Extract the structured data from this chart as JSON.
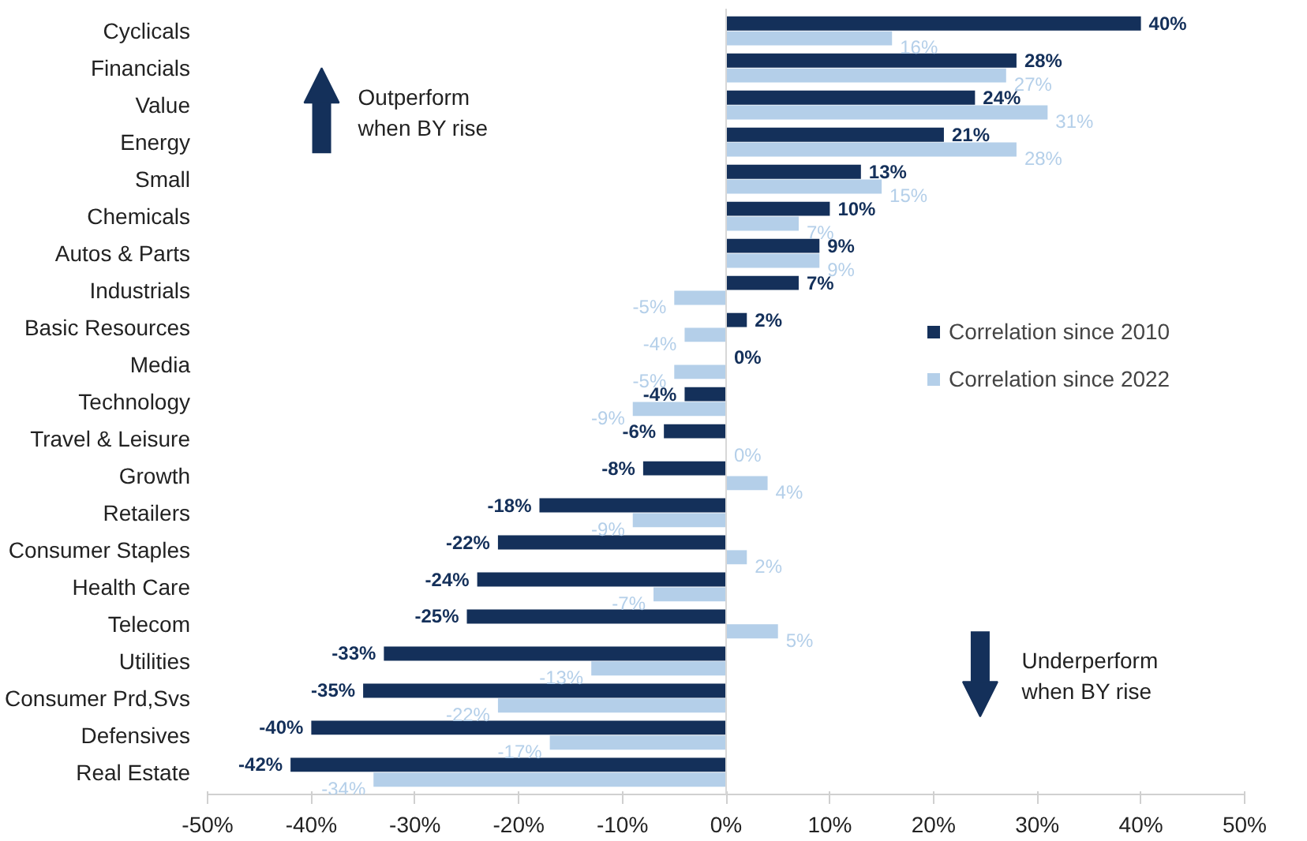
{
  "chart_data": {
    "type": "bar",
    "orientation": "horizontal",
    "categories": [
      "Cyclicals",
      "Financials",
      "Value",
      "Energy",
      "Small",
      "Chemicals",
      "Autos & Parts",
      "Industrials",
      "Basic Resources",
      "Media",
      "Technology",
      "Travel & Leisure",
      "Growth",
      "Retailers",
      "Consumer Staples",
      "Health Care",
      "Telecom",
      "Utilities",
      "Consumer Prd,Svs",
      "Defensives",
      "Real Estate"
    ],
    "series": [
      {
        "name": "Correlation since 2010",
        "color": "#14305a",
        "values": [
          40,
          28,
          24,
          21,
          13,
          10,
          9,
          7,
          2,
          0,
          -4,
          -6,
          -8,
          -18,
          -22,
          -24,
          -25,
          -33,
          -35,
          -40,
          -42
        ],
        "value_labels": [
          "40%",
          "28%",
          "24%",
          "21%",
          "13%",
          "10%",
          "9%",
          "7%",
          "2%",
          "0%",
          "-4%",
          "-6%",
          "-8%",
          "-18%",
          "-22%",
          "-24%",
          "-25%",
          "-33%",
          "-35%",
          "-40%",
          "-42%"
        ]
      },
      {
        "name": "Correlation since 2022",
        "color": "#b4cfe9",
        "values": [
          16,
          27,
          31,
          28,
          15,
          7,
          9,
          -5,
          -4,
          -5,
          -9,
          0,
          4,
          -9,
          2,
          -7,
          5,
          -13,
          -22,
          -17,
          -34
        ],
        "value_labels": [
          "16%",
          "27%",
          "31%",
          "28%",
          "15%",
          "7%",
          "9%",
          "-5%",
          "-4%",
          "-5%",
          "-9%",
          "0%",
          "4%",
          "-9%",
          "2%",
          "-7%",
          "5%",
          "-13%",
          "-22%",
          "-17%",
          "-34%"
        ]
      }
    ],
    "xlim": [
      -50,
      50
    ],
    "xticks": [
      {
        "value": -50,
        "label": "-50%"
      },
      {
        "value": -40,
        "label": "-40%"
      },
      {
        "value": -30,
        "label": "-30%"
      },
      {
        "value": -20,
        "label": "-20%"
      },
      {
        "value": -10,
        "label": "-10%"
      },
      {
        "value": 0,
        "label": "0%"
      },
      {
        "value": 10,
        "label": "10%"
      },
      {
        "value": 20,
        "label": "20%"
      },
      {
        "value": 30,
        "label": "30%"
      },
      {
        "value": 40,
        "label": "40%"
      },
      {
        "value": 50,
        "label": "50%"
      }
    ],
    "legend": "right",
    "annotations": [
      "Outperform\nwhen BY rise",
      "Underperform\nwhen BY rise"
    ]
  }
}
